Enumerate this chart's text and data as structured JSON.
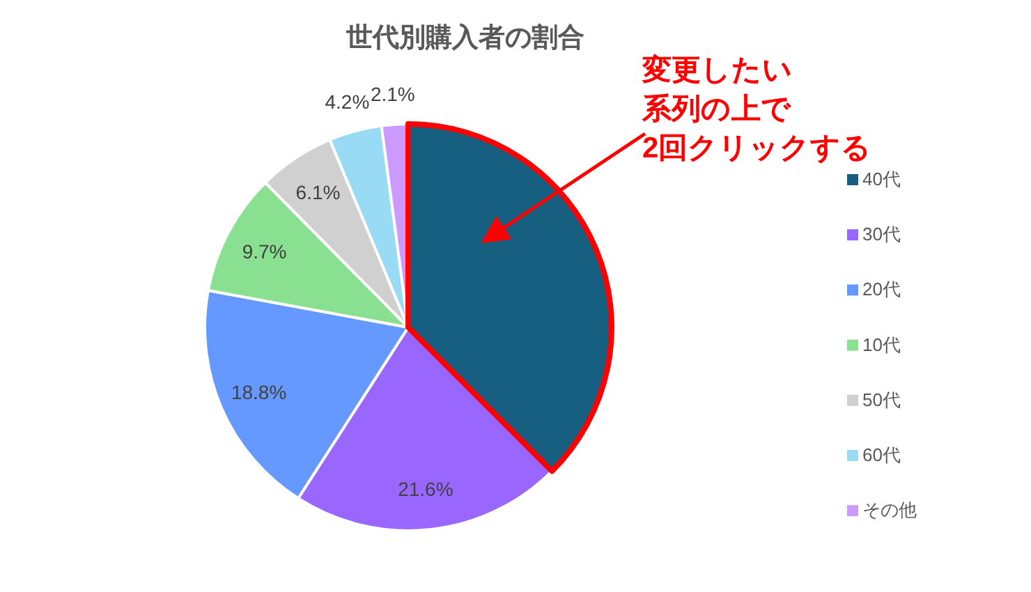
{
  "chart_data": {
    "type": "pie",
    "title": "世代別購入者の割合",
    "categories": [
      "40代",
      "30代",
      "20代",
      "10代",
      "50代",
      "60代",
      "その他"
    ],
    "values": [
      37.5,
      21.6,
      18.8,
      9.7,
      6.1,
      4.2,
      2.1
    ],
    "colors": [
      "#175f80",
      "#9966ff",
      "#6699ff",
      "#88e090",
      "#d0d0d0",
      "#99dbf5",
      "#cc99ff"
    ],
    "value_labels": [
      null,
      "21.6%",
      "18.8%",
      "9.7%",
      "6.1%",
      "4.2%",
      "2.1%"
    ],
    "legend": "right",
    "annotations": [
      "変更したい",
      "系列の上で",
      {
        "text": "2回クリックする",
        "x": "40代"
      }
    ]
  }
}
